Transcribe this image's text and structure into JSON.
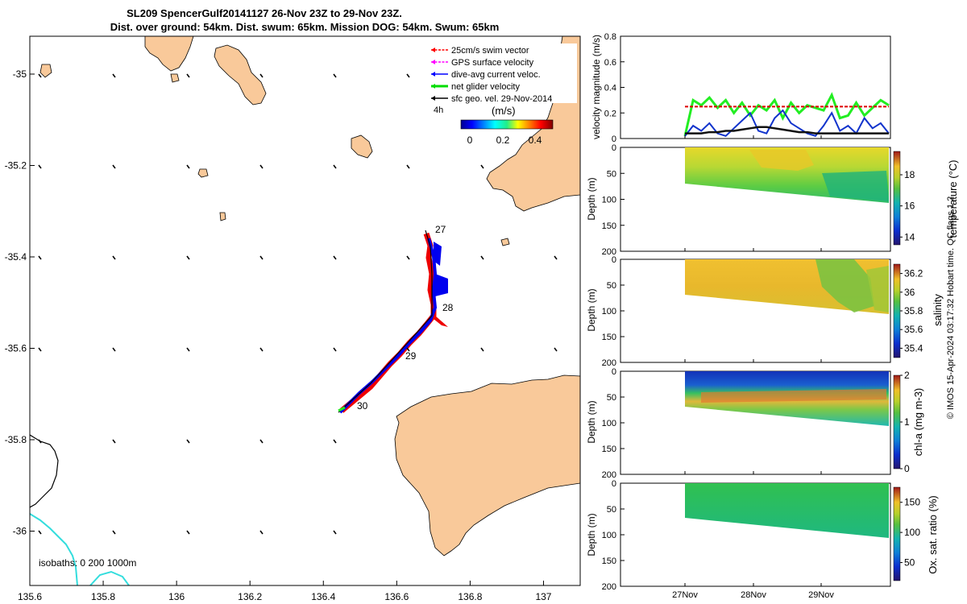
{
  "title": {
    "line1": "SL209 SpencerGulf20141127 26-Nov 23Z to 29-Nov 23Z.",
    "line2": "Dist. over ground: 54km. Dist. swum: 65km. Mission DOG: 54km. Swum: 65km"
  },
  "map": {
    "xticks": [
      "135.6",
      "135.8",
      "136",
      "136.2",
      "136.4",
      "136.6",
      "136.8",
      "137"
    ],
    "yticks": [
      "-35",
      "-35.2",
      "-35.4",
      "-35.6",
      "-35.8",
      "-36"
    ],
    "legend": [
      {
        "label": "25cm/s swim vector",
        "color": "#ff0000"
      },
      {
        "label": "GPS surface velocity",
        "color": "#ff00ff"
      },
      {
        "label": "dive-avg current veloc.",
        "color": "#0000ff"
      },
      {
        "label": "net glider velocity",
        "color": "#00dd00"
      },
      {
        "label": "sfc geo. vel. 29-Nov-2014",
        "color": "#000000"
      }
    ],
    "scale_label": "4h",
    "colorbar_label": "(m/s)",
    "colorbar_ticks": [
      "0",
      "0.2",
      "0.4"
    ],
    "day_labels": [
      "27",
      "28",
      "29",
      "30"
    ],
    "isobaths_label": "isobaths: 0   200  1000m",
    "land_color": "#f9c99a",
    "isobath_color": "#33dddd"
  },
  "chart_data": [
    {
      "type": "line",
      "ylabel": "velocity magnitude (m/s)",
      "ylim": [
        0,
        0.8
      ],
      "yticks": [
        "0",
        "0.2",
        "0.4",
        "0.6",
        "0.8"
      ],
      "xticks": [
        "27Nov",
        "28Nov",
        "29Nov"
      ],
      "series": [
        {
          "name": "net glider velocity",
          "color": "#22ee22",
          "values": [
            0.02,
            0.3,
            0.26,
            0.32,
            0.24,
            0.3,
            0.2,
            0.28,
            0.18,
            0.26,
            0.22,
            0.3,
            0.16,
            0.28,
            0.2,
            0.26,
            0.24,
            0.22,
            0.34,
            0.16,
            0.18,
            0.28,
            0.18,
            0.24,
            0.3,
            0.26
          ]
        },
        {
          "name": "25cm/s swim vector",
          "color": "#dd0000",
          "values": [
            0.25,
            0.25,
            0.25,
            0.25,
            0.25,
            0.25,
            0.25,
            0.25,
            0.25,
            0.25,
            0.25,
            0.25,
            0.25,
            0.25,
            0.25,
            0.25,
            0.25,
            0.25,
            0.25,
            0.25,
            0.25,
            0.25,
            0.25,
            0.25,
            0.25,
            0.25
          ]
        },
        {
          "name": "dive-avg current veloc.",
          "color": "#1133cc",
          "values": [
            0.02,
            0.1,
            0.06,
            0.12,
            0.04,
            0.02,
            0.08,
            0.14,
            0.2,
            0.06,
            0.04,
            0.16,
            0.22,
            0.12,
            0.08,
            0.04,
            0.02,
            0.1,
            0.2,
            0.06,
            0.1,
            0.04,
            0.16,
            0.08,
            0.12,
            0.04
          ]
        },
        {
          "name": "sfc geo. vel. 29-Nov-2014",
          "color": "#111111",
          "values": [
            0.04,
            0.04,
            0.04,
            0.05,
            0.05,
            0.06,
            0.06,
            0.07,
            0.08,
            0.09,
            0.09,
            0.08,
            0.07,
            0.06,
            0.05,
            0.05,
            0.04,
            0.04,
            0.04,
            0.04,
            0.04,
            0.04,
            0.04,
            0.04,
            0.04,
            0.04
          ]
        }
      ]
    },
    {
      "type": "heatmap",
      "ylabel": "Depth (m)",
      "cblabel": "temperature (°C)",
      "yticks": [
        "0",
        "50",
        "100",
        "150",
        "200"
      ],
      "cbticks": [
        "14",
        "16",
        "18"
      ],
      "cbrange": [
        13.5,
        19.5
      ]
    },
    {
      "type": "heatmap",
      "ylabel": "Depth (m)",
      "cblabel": "salinity",
      "yticks": [
        "0",
        "50",
        "100",
        "150",
        "200"
      ],
      "cbticks": [
        "35.4",
        "35.6",
        "35.8",
        "36",
        "36.2"
      ],
      "cbrange": [
        35.3,
        36.3
      ]
    },
    {
      "type": "heatmap",
      "ylabel": "Depth (m)",
      "cblabel": "chl-a (mg m-3)",
      "yticks": [
        "0",
        "50",
        "100",
        "150",
        "200"
      ],
      "cbticks": [
        "0",
        "1",
        "2"
      ],
      "cbrange": [
        0,
        2
      ]
    },
    {
      "type": "heatmap",
      "ylabel": "Depth (m)",
      "cblabel": "Ox. sat. ratio (%)",
      "yticks": [
        "0",
        "50",
        "100",
        "150",
        "200"
      ],
      "xticks": [
        "27Nov",
        "28Nov",
        "29Nov"
      ],
      "cbticks": [
        "50",
        "100",
        "150"
      ],
      "cbrange": [
        20,
        175
      ]
    }
  ],
  "side_note": "© IMOS 15-Apr-2024 03:17:32 Hobart time. QC flags 1  2"
}
